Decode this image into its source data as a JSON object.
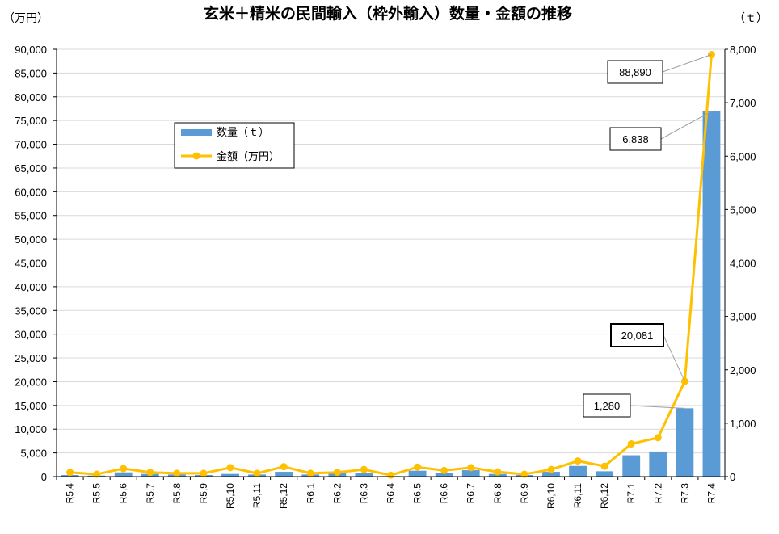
{
  "chart_data": {
    "type": "bar+line",
    "title": "玄米＋精米の民間輸入（枠外輸入）数量・金額の推移",
    "y_left_unit": "（万円）",
    "y_right_unit": "（ｔ）",
    "categories": [
      "R5,4",
      "R5,5",
      "R5,6",
      "R5,7",
      "R5,8",
      "R5,9",
      "R5,10",
      "R5,11",
      "R5,12",
      "R6,1",
      "R6,2",
      "R6,3",
      "R6,4",
      "R6,5",
      "R6,6",
      "R6,7",
      "R6,8",
      "R6,9",
      "R6,10",
      "R6,11",
      "R6,12",
      "R7,1",
      "R7,2",
      "R7,3",
      "R7,4"
    ],
    "series": [
      {
        "name": "数量（ｔ）",
        "type": "bar",
        "axis": "right",
        "color": "#5b9bd5",
        "values": [
          30,
          20,
          80,
          50,
          40,
          30,
          50,
          40,
          90,
          40,
          60,
          60,
          10,
          110,
          70,
          120,
          50,
          30,
          90,
          200,
          100,
          400,
          470,
          1280,
          6838
        ]
      },
      {
        "name": "金額（万円）",
        "type": "line",
        "axis": "left",
        "color": "#ffc000",
        "values": [
          900,
          500,
          1700,
          900,
          700,
          700,
          1900,
          700,
          2100,
          700,
          900,
          1500,
          300,
          2000,
          1300,
          1900,
          1000,
          500,
          1500,
          3300,
          2200,
          6900,
          8200,
          20081,
          88890
        ]
      }
    ],
    "y_left": {
      "min": 0,
      "max": 90000,
      "step": 5000,
      "tick_labels": [
        "0",
        "5,000",
        "10,000",
        "15,000",
        "20,000",
        "25,000",
        "30,000",
        "35,000",
        "40,000",
        "45,000",
        "50,000",
        "55,000",
        "60,000",
        "65,000",
        "70,000",
        "75,000",
        "80,000",
        "85,000",
        "90,000"
      ]
    },
    "y_right": {
      "min": 0,
      "max": 8000,
      "step": 1000,
      "tick_labels": [
        "0",
        "1,000",
        "2,000",
        "3,000",
        "4,000",
        "5,000",
        "6,000",
        "7,000",
        "8,000"
      ]
    },
    "grid": true,
    "legend_position": "top-left",
    "annotations": [
      {
        "text": "88,890",
        "series": "金額（万円）",
        "category": "R7,4",
        "bold": false
      },
      {
        "text": "6,838",
        "series": "数量（ｔ）",
        "category": "R7,4",
        "bold": false
      },
      {
        "text": "20,081",
        "series": "金額（万円）",
        "category": "R7,3",
        "bold": true
      },
      {
        "text": "1,280",
        "series": "数量（ｔ）",
        "category": "R7,3",
        "bold": false
      }
    ]
  }
}
